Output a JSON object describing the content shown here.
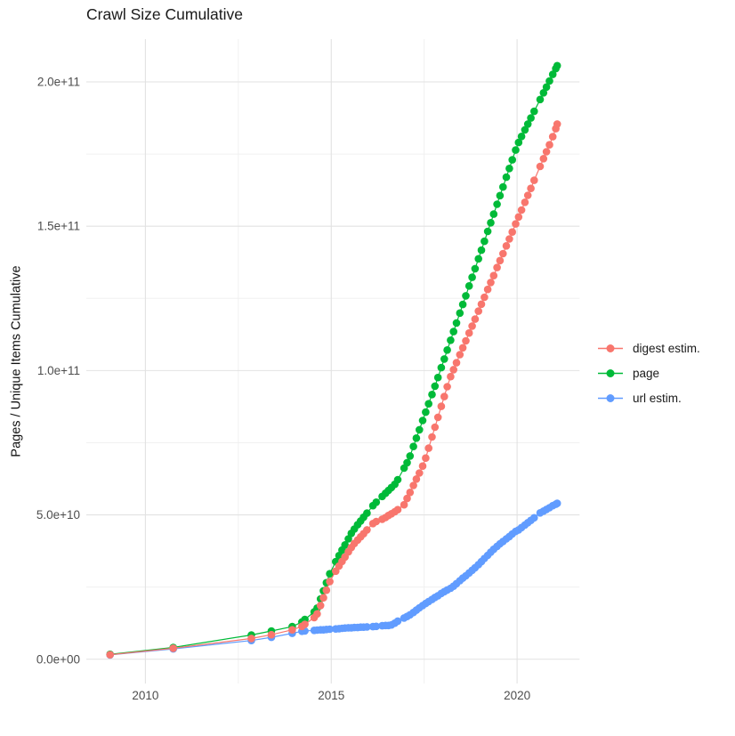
{
  "title": "Crawl Size Cumulative",
  "y_axis": {
    "label": "Pages / Unique Items Cumulative",
    "tick_labels": [
      "0.0e+00",
      "5.0e+10",
      "1.0e+11",
      "1.5e+11",
      "2.0e+11"
    ],
    "tick_values_e9": [
      0,
      50,
      100,
      150,
      200
    ],
    "minor_values_e9": [
      25,
      75,
      125,
      175
    ],
    "range_e9": [
      -8.4,
      214.8
    ]
  },
  "x_axis": {
    "tick_labels": [
      "2010",
      "2015",
      "2020"
    ],
    "tick_values": [
      2010,
      2015,
      2020
    ],
    "minor_values": [
      2012.5,
      2017.5
    ],
    "range": [
      2008.41,
      2021.68
    ]
  },
  "legend": {
    "items": [
      {
        "label": "digest estim.",
        "color": "#F8766D"
      },
      {
        "label": "page",
        "color": "#00BA38"
      },
      {
        "label": "url estim.",
        "color": "#619CFF"
      }
    ]
  },
  "chart_data": {
    "type": "line",
    "title": "Crawl Size Cumulative",
    "xlabel": "",
    "ylabel": "Pages / Unique Items Cumulative",
    "x_unit": "year (decimal)",
    "y_unit": "pages / unique items (billions, 1e9)",
    "xlim": [
      2008.41,
      2021.68
    ],
    "ylim_e9": [
      -8.4,
      214.8
    ],
    "grid": true,
    "legend_position": "right",
    "marker": "point",
    "series": [
      {
        "id": "page",
        "name": "page",
        "color": "#00BA38",
        "points_e9": [
          [
            2009.05,
            1.7
          ],
          [
            2010.75,
            4.1
          ],
          [
            2012.85,
            8.4
          ],
          [
            2013.39,
            9.8
          ],
          [
            2013.95,
            11.3
          ],
          [
            2014.21,
            12.9
          ],
          [
            2014.29,
            13.8
          ],
          [
            2014.54,
            16.4
          ],
          [
            2014.62,
            17.7
          ],
          [
            2014.71,
            20.9
          ],
          [
            2014.79,
            23.7
          ],
          [
            2014.87,
            26.5
          ],
          [
            2014.96,
            29.6
          ],
          [
            2015.12,
            33.8
          ],
          [
            2015.21,
            35.9
          ],
          [
            2015.29,
            37.8
          ],
          [
            2015.37,
            39.6
          ],
          [
            2015.46,
            41.7
          ],
          [
            2015.54,
            43.6
          ],
          [
            2015.62,
            45.1
          ],
          [
            2015.71,
            46.6
          ],
          [
            2015.79,
            47.9
          ],
          [
            2015.87,
            49.2
          ],
          [
            2015.96,
            50.6
          ],
          [
            2016.12,
            53.2
          ],
          [
            2016.21,
            54.4
          ],
          [
            2016.37,
            56.4
          ],
          [
            2016.46,
            57.5
          ],
          [
            2016.54,
            58.5
          ],
          [
            2016.62,
            59.5
          ],
          [
            2016.71,
            60.6
          ],
          [
            2016.79,
            62.2
          ],
          [
            2016.96,
            66.2
          ],
          [
            2017.04,
            68.1
          ],
          [
            2017.12,
            70.4
          ],
          [
            2017.21,
            73.7
          ],
          [
            2017.29,
            76.6
          ],
          [
            2017.37,
            79.5
          ],
          [
            2017.46,
            82.7
          ],
          [
            2017.54,
            85.6
          ],
          [
            2017.62,
            88.5
          ],
          [
            2017.71,
            91.7
          ],
          [
            2017.79,
            94.6
          ],
          [
            2017.87,
            97.6
          ],
          [
            2017.96,
            101.0
          ],
          [
            2018.04,
            104.0
          ],
          [
            2018.12,
            107.1
          ],
          [
            2018.21,
            110.5
          ],
          [
            2018.29,
            113.5
          ],
          [
            2018.37,
            116.5
          ],
          [
            2018.46,
            119.9
          ],
          [
            2018.54,
            122.9
          ],
          [
            2018.62,
            125.9
          ],
          [
            2018.71,
            129.3
          ],
          [
            2018.79,
            132.3
          ],
          [
            2018.87,
            135.3
          ],
          [
            2018.96,
            138.7
          ],
          [
            2019.04,
            141.7
          ],
          [
            2019.12,
            144.8
          ],
          [
            2019.21,
            148.2
          ],
          [
            2019.29,
            151.2
          ],
          [
            2019.37,
            154.2
          ],
          [
            2019.46,
            157.6
          ],
          [
            2019.54,
            160.6
          ],
          [
            2019.62,
            163.6
          ],
          [
            2019.71,
            167.0
          ],
          [
            2019.79,
            170.0
          ],
          [
            2019.87,
            173.0
          ],
          [
            2019.96,
            176.4
          ],
          [
            2020.04,
            179.0
          ],
          [
            2020.12,
            181.1
          ],
          [
            2020.21,
            183.4
          ],
          [
            2020.29,
            185.4
          ],
          [
            2020.37,
            187.5
          ],
          [
            2020.46,
            189.8
          ],
          [
            2020.62,
            193.9
          ],
          [
            2020.71,
            196.2
          ],
          [
            2020.79,
            198.2
          ],
          [
            2020.87,
            200.3
          ],
          [
            2020.96,
            202.6
          ],
          [
            2021.04,
            204.6
          ],
          [
            2021.08,
            205.6
          ]
        ]
      },
      {
        "id": "url-estim",
        "name": "url estim.",
        "color": "#619CFF",
        "points_e9": [
          [
            2009.05,
            1.5
          ],
          [
            2010.75,
            3.6
          ],
          [
            2012.85,
            6.5
          ],
          [
            2013.39,
            7.6
          ],
          [
            2013.95,
            9.0
          ],
          [
            2014.21,
            9.7
          ],
          [
            2014.29,
            9.8
          ],
          [
            2014.54,
            10.0
          ],
          [
            2014.62,
            10.1
          ],
          [
            2014.71,
            10.2
          ],
          [
            2014.79,
            10.2
          ],
          [
            2014.87,
            10.3
          ],
          [
            2014.96,
            10.4
          ],
          [
            2015.12,
            10.5
          ],
          [
            2015.21,
            10.6
          ],
          [
            2015.29,
            10.7
          ],
          [
            2015.37,
            10.8
          ],
          [
            2015.46,
            10.9
          ],
          [
            2015.54,
            10.9
          ],
          [
            2015.62,
            11.0
          ],
          [
            2015.71,
            11.0
          ],
          [
            2015.79,
            11.1
          ],
          [
            2015.87,
            11.1
          ],
          [
            2015.96,
            11.2
          ],
          [
            2016.12,
            11.3
          ],
          [
            2016.21,
            11.4
          ],
          [
            2016.37,
            11.6
          ],
          [
            2016.46,
            11.7
          ],
          [
            2016.54,
            11.7
          ],
          [
            2016.62,
            11.9
          ],
          [
            2016.71,
            12.5
          ],
          [
            2016.79,
            13.2
          ],
          [
            2016.96,
            14.3
          ],
          [
            2017.04,
            14.8
          ],
          [
            2017.12,
            15.4
          ],
          [
            2017.21,
            16.2
          ],
          [
            2017.29,
            17.0
          ],
          [
            2017.37,
            17.8
          ],
          [
            2017.46,
            18.6
          ],
          [
            2017.54,
            19.3
          ],
          [
            2017.62,
            20.0
          ],
          [
            2017.71,
            20.7
          ],
          [
            2017.79,
            21.4
          ],
          [
            2017.87,
            22.0
          ],
          [
            2017.96,
            22.8
          ],
          [
            2018.04,
            23.4
          ],
          [
            2018.12,
            24.0
          ],
          [
            2018.21,
            24.6
          ],
          [
            2018.29,
            25.3
          ],
          [
            2018.37,
            26.2
          ],
          [
            2018.46,
            27.2
          ],
          [
            2018.54,
            28.1
          ],
          [
            2018.62,
            28.9
          ],
          [
            2018.71,
            29.9
          ],
          [
            2018.79,
            30.8
          ],
          [
            2018.87,
            31.7
          ],
          [
            2018.96,
            32.8
          ],
          [
            2019.04,
            33.8
          ],
          [
            2019.12,
            34.9
          ],
          [
            2019.21,
            36.0
          ],
          [
            2019.29,
            37.1
          ],
          [
            2019.37,
            38.1
          ],
          [
            2019.46,
            39.1
          ],
          [
            2019.54,
            40.0
          ],
          [
            2019.62,
            40.8
          ],
          [
            2019.71,
            41.7
          ],
          [
            2019.79,
            42.5
          ],
          [
            2019.87,
            43.4
          ],
          [
            2019.96,
            44.3
          ],
          [
            2020.04,
            44.8
          ],
          [
            2020.12,
            45.6
          ],
          [
            2020.21,
            46.5
          ],
          [
            2020.29,
            47.3
          ],
          [
            2020.37,
            48.1
          ],
          [
            2020.46,
            49.0
          ],
          [
            2020.62,
            50.7
          ],
          [
            2020.71,
            51.3
          ],
          [
            2020.79,
            51.9
          ],
          [
            2020.87,
            52.5
          ],
          [
            2020.96,
            53.2
          ],
          [
            2021.04,
            53.7
          ],
          [
            2021.08,
            54.0
          ]
        ]
      },
      {
        "id": "digest-estim",
        "name": "digest estim.",
        "color": "#F8766D",
        "points_e9": [
          [
            2009.05,
            1.55
          ],
          [
            2010.75,
            3.8
          ],
          [
            2012.85,
            7.2
          ],
          [
            2013.39,
            8.5
          ],
          [
            2013.95,
            10.2
          ],
          [
            2014.21,
            11.4
          ],
          [
            2014.29,
            12.1
          ],
          [
            2014.54,
            14.4
          ],
          [
            2014.62,
            15.7
          ],
          [
            2014.71,
            18.6
          ],
          [
            2014.79,
            21.3
          ],
          [
            2014.87,
            23.9
          ],
          [
            2014.96,
            26.9
          ],
          [
            2015.12,
            30.5
          ],
          [
            2015.21,
            32.3
          ],
          [
            2015.29,
            33.9
          ],
          [
            2015.37,
            35.4
          ],
          [
            2015.46,
            37.2
          ],
          [
            2015.54,
            38.7
          ],
          [
            2015.62,
            40.1
          ],
          [
            2015.71,
            41.3
          ],
          [
            2015.79,
            42.4
          ],
          [
            2015.87,
            43.5
          ],
          [
            2015.96,
            44.8
          ],
          [
            2016.12,
            47.0
          ],
          [
            2016.21,
            47.7
          ],
          [
            2016.37,
            48.5
          ],
          [
            2016.46,
            49.1
          ],
          [
            2016.54,
            49.8
          ],
          [
            2016.62,
            50.4
          ],
          [
            2016.71,
            51.1
          ],
          [
            2016.79,
            51.8
          ],
          [
            2016.96,
            53.5
          ],
          [
            2017.04,
            55.7
          ],
          [
            2017.12,
            57.8
          ],
          [
            2017.21,
            60.2
          ],
          [
            2017.29,
            62.4
          ],
          [
            2017.37,
            64.5
          ],
          [
            2017.46,
            66.9
          ],
          [
            2017.54,
            69.7
          ],
          [
            2017.62,
            73.1
          ],
          [
            2017.71,
            77.0
          ],
          [
            2017.79,
            80.4
          ],
          [
            2017.87,
            83.8
          ],
          [
            2017.96,
            87.6
          ],
          [
            2018.04,
            91.0
          ],
          [
            2018.12,
            94.4
          ],
          [
            2018.21,
            97.9
          ],
          [
            2018.29,
            100.3
          ],
          [
            2018.37,
            102.7
          ],
          [
            2018.46,
            105.5
          ],
          [
            2018.54,
            107.9
          ],
          [
            2018.62,
            110.3
          ],
          [
            2018.71,
            113.0
          ],
          [
            2018.79,
            115.4
          ],
          [
            2018.87,
            117.8
          ],
          [
            2018.96,
            120.6
          ],
          [
            2019.04,
            123.0
          ],
          [
            2019.12,
            125.4
          ],
          [
            2019.21,
            128.1
          ],
          [
            2019.29,
            130.5
          ],
          [
            2019.37,
            132.9
          ],
          [
            2019.46,
            135.7
          ],
          [
            2019.54,
            138.1
          ],
          [
            2019.62,
            140.5
          ],
          [
            2019.71,
            143.2
          ],
          [
            2019.79,
            145.6
          ],
          [
            2019.87,
            148.0
          ],
          [
            2019.96,
            150.8
          ],
          [
            2020.04,
            153.2
          ],
          [
            2020.12,
            155.6
          ],
          [
            2020.21,
            158.3
          ],
          [
            2020.29,
            160.7
          ],
          [
            2020.37,
            163.1
          ],
          [
            2020.46,
            165.9
          ],
          [
            2020.62,
            170.7
          ],
          [
            2020.71,
            173.4
          ],
          [
            2020.79,
            175.8
          ],
          [
            2020.87,
            178.2
          ],
          [
            2020.96,
            181.0
          ],
          [
            2021.04,
            183.8
          ],
          [
            2021.08,
            185.4
          ]
        ]
      }
    ]
  }
}
